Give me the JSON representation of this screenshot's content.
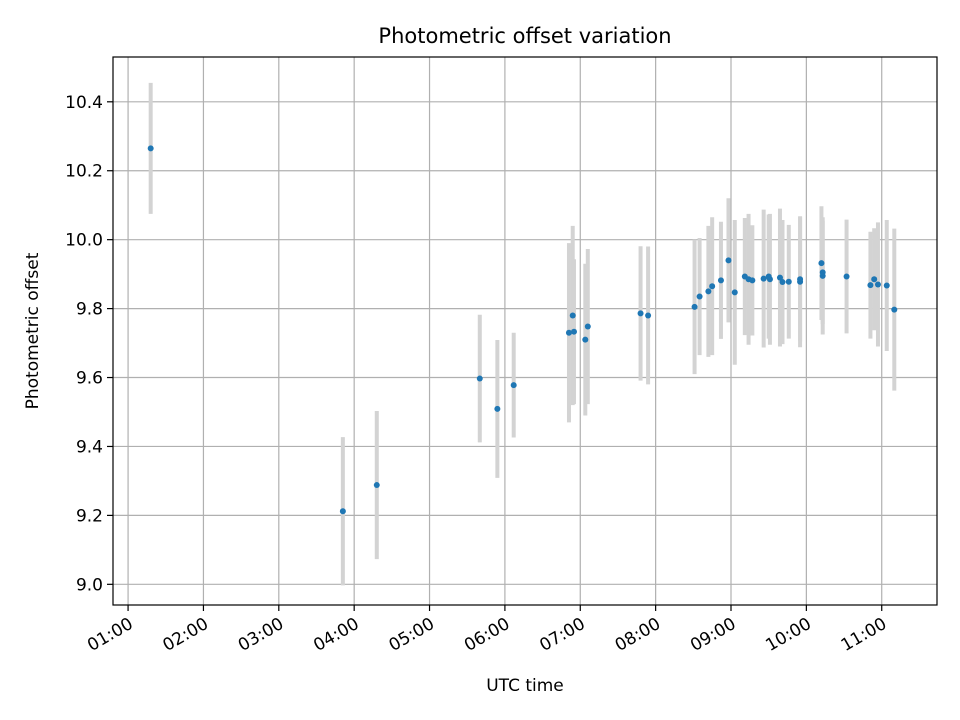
{
  "chart_data": {
    "type": "scatter",
    "title": "Photometric offset variation",
    "xlabel": "UTC time",
    "ylabel": "Photometric offset",
    "xlim": [
      "00:48",
      "11:44"
    ],
    "ylim": [
      8.94,
      10.53
    ],
    "grid": true,
    "error_bars": true,
    "colors": {
      "point": "#1f77b4",
      "errorbar": "#d3d3d3",
      "grid": "#b0b0b0"
    },
    "x_ticks": [
      "01:00",
      "02:00",
      "03:00",
      "04:00",
      "05:00",
      "06:00",
      "07:00",
      "08:00",
      "09:00",
      "10:00",
      "11:00"
    ],
    "y_ticks": [
      "9.0",
      "9.2",
      "9.4",
      "9.6",
      "9.8",
      "10.0",
      "10.2",
      "10.4"
    ],
    "points": [
      {
        "x": "01:18",
        "y": 10.265,
        "err": 0.19
      },
      {
        "x": "03:51",
        "y": 9.212,
        "err": 0.215
      },
      {
        "x": "04:18",
        "y": 9.288,
        "err": 0.215
      },
      {
        "x": "05:40",
        "y": 9.597,
        "err": 0.185
      },
      {
        "x": "05:54",
        "y": 9.509,
        "err": 0.2
      },
      {
        "x": "06:07",
        "y": 9.578,
        "err": 0.152
      },
      {
        "x": "06:51",
        "y": 9.73,
        "err": 0.26
      },
      {
        "x": "06:54",
        "y": 9.78,
        "err": 0.26
      },
      {
        "x": "06:55",
        "y": 9.733,
        "err": 0.21
      },
      {
        "x": "07:04",
        "y": 9.71,
        "err": 0.22
      },
      {
        "x": "07:06",
        "y": 9.748,
        "err": 0.225
      },
      {
        "x": "07:48",
        "y": 9.786,
        "err": 0.195
      },
      {
        "x": "07:54",
        "y": 9.78,
        "err": 0.2
      },
      {
        "x": "08:31",
        "y": 9.805,
        "err": 0.195
      },
      {
        "x": "08:35",
        "y": 9.835,
        "err": 0.17
      },
      {
        "x": "08:42",
        "y": 9.85,
        "err": 0.19
      },
      {
        "x": "08:45",
        "y": 9.865,
        "err": 0.2
      },
      {
        "x": "08:52",
        "y": 9.882,
        "err": 0.17
      },
      {
        "x": "08:58",
        "y": 9.94,
        "err": 0.18
      },
      {
        "x": "09:03",
        "y": 9.847,
        "err": 0.21
      },
      {
        "x": "09:11",
        "y": 9.893,
        "err": 0.17
      },
      {
        "x": "09:14",
        "y": 9.885,
        "err": 0.19
      },
      {
        "x": "09:17",
        "y": 9.882,
        "err": 0.16
      },
      {
        "x": "09:26",
        "y": 9.887,
        "err": 0.2
      },
      {
        "x": "09:30",
        "y": 9.893,
        "err": 0.18
      },
      {
        "x": "09:31",
        "y": 9.885,
        "err": 0.19
      },
      {
        "x": "09:39",
        "y": 9.89,
        "err": 0.2
      },
      {
        "x": "09:41",
        "y": 9.877,
        "err": 0.18
      },
      {
        "x": "09:46",
        "y": 9.878,
        "err": 0.165
      },
      {
        "x": "09:55",
        "y": 9.885,
        "err": 0.18
      },
      {
        "x": "09:55",
        "y": 9.878,
        "err": 0.19
      },
      {
        "x": "10:12",
        "y": 9.932,
        "err": 0.165
      },
      {
        "x": "10:13",
        "y": 9.905,
        "err": 0.15
      },
      {
        "x": "10:13",
        "y": 9.895,
        "err": 0.17
      },
      {
        "x": "10:32",
        "y": 9.893,
        "err": 0.165
      },
      {
        "x": "10:51",
        "y": 9.868,
        "err": 0.155
      },
      {
        "x": "10:54",
        "y": 9.885,
        "err": 0.148
      },
      {
        "x": "10:57",
        "y": 9.87,
        "err": 0.18
      },
      {
        "x": "11:04",
        "y": 9.867,
        "err": 0.19
      },
      {
        "x": "11:10",
        "y": 9.797,
        "err": 0.235
      }
    ]
  }
}
